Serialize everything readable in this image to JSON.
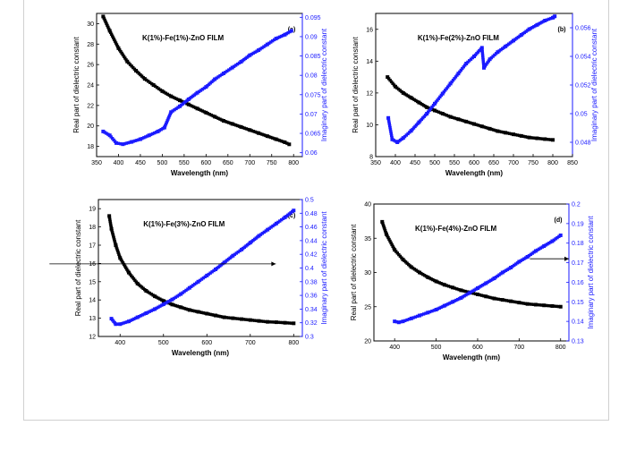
{
  "chart_data": [
    {
      "type": "scatter",
      "panel_label": "(a)",
      "title": "K(1%)-Fe(1%)-ZnO FILM",
      "xlabel": "Wavelength (nm)",
      "ylabel": "Real part of dielectric constant",
      "ylabel_right": "Imaginary part of dielectric constant",
      "xlim": [
        350,
        820
      ],
      "ylim": [
        17,
        31
      ],
      "ylim_right": [
        0.059,
        0.096
      ],
      "xticks": [
        350,
        400,
        450,
        500,
        550,
        600,
        650,
        700,
        750,
        800
      ],
      "yticks": [
        18,
        20,
        22,
        24,
        26,
        28,
        30
      ],
      "yticks_right": [
        0.06,
        0.065,
        0.07,
        0.075,
        0.08,
        0.085,
        0.09,
        0.095
      ],
      "series": [
        {
          "color": "#000000",
          "axis": "left",
          "x": [
            365,
            380,
            400,
            420,
            440,
            460,
            480,
            500,
            520,
            540,
            560,
            580,
            600,
            620,
            640,
            660,
            680,
            700,
            720,
            740,
            760,
            780,
            790
          ],
          "y": [
            30.7,
            29.3,
            27.6,
            26.3,
            25.4,
            24.6,
            24.0,
            23.4,
            22.9,
            22.5,
            22.1,
            21.7,
            21.3,
            20.9,
            20.5,
            20.2,
            19.9,
            19.6,
            19.3,
            19.0,
            18.7,
            18.4,
            18.2
          ]
        },
        {
          "color": "#1a1aff",
          "axis": "right",
          "x": [
            365,
            380,
            395,
            410,
            430,
            450,
            470,
            490,
            505,
            520,
            540,
            560,
            580,
            600,
            620,
            640,
            660,
            680,
            700,
            720,
            740,
            760,
            780,
            795
          ],
          "y": [
            0.0655,
            0.0645,
            0.0625,
            0.0622,
            0.0628,
            0.0635,
            0.0645,
            0.0655,
            0.0665,
            0.0705,
            0.072,
            0.0738,
            0.0755,
            0.077,
            0.079,
            0.0805,
            0.082,
            0.0835,
            0.0852,
            0.0865,
            0.088,
            0.0895,
            0.0905,
            0.0915
          ]
        }
      ]
    },
    {
      "type": "scatter",
      "panel_label": "(b)",
      "title": "K(1%)-Fe(2%)-ZnO FILM",
      "xlabel": "Wavelength (nm)",
      "ylabel": "Real part of dielectric constant",
      "ylabel_right": "Imaginary part of dielectric constant",
      "xlim": [
        350,
        850
      ],
      "ylim": [
        8,
        17
      ],
      "ylim_right": [
        0.047,
        0.057
      ],
      "xticks": [
        350,
        400,
        450,
        500,
        550,
        600,
        650,
        700,
        750,
        800,
        850
      ],
      "yticks": [
        8,
        10,
        12,
        14,
        16
      ],
      "yticks_right": [
        0.048,
        0.05,
        0.052,
        0.054,
        0.056
      ],
      "series": [
        {
          "color": "#000000",
          "axis": "left",
          "x": [
            380,
            400,
            420,
            440,
            460,
            480,
            500,
            520,
            540,
            560,
            580,
            600,
            620,
            640,
            660,
            680,
            700,
            720,
            740,
            760,
            780,
            800
          ],
          "y": [
            13.0,
            12.4,
            12.0,
            11.7,
            11.4,
            11.1,
            10.9,
            10.7,
            10.5,
            10.35,
            10.2,
            10.05,
            9.9,
            9.75,
            9.6,
            9.5,
            9.4,
            9.3,
            9.2,
            9.15,
            9.1,
            9.05
          ]
        },
        {
          "color": "#1a1aff",
          "axis": "right",
          "x": [
            382,
            392,
            405,
            420,
            440,
            460,
            480,
            500,
            520,
            540,
            560,
            580,
            600,
            620,
            625,
            640,
            660,
            680,
            700,
            720,
            740,
            760,
            780,
            800,
            805
          ],
          "y": [
            0.0497,
            0.0482,
            0.048,
            0.0483,
            0.0488,
            0.0494,
            0.05,
            0.0507,
            0.0514,
            0.0521,
            0.0528,
            0.0535,
            0.054,
            0.0546,
            0.0532,
            0.0538,
            0.0543,
            0.0547,
            0.0551,
            0.0555,
            0.0559,
            0.0562,
            0.0565,
            0.0567,
            0.0568
          ]
        }
      ]
    },
    {
      "type": "scatter",
      "panel_label": "(c)",
      "title": "K(1%)-Fe(3%)-ZnO FILM",
      "xlabel": "Wavelength (nm)",
      "ylabel": "Real part of dielectric constant",
      "ylabel_right": "Imaginary part of dielectric constant",
      "xlim": [
        350,
        820
      ],
      "ylim": [
        12,
        19.5
      ],
      "ylim_right": [
        0.3,
        0.5
      ],
      "xticks": [
        400,
        500,
        600,
        700,
        800
      ],
      "yticks": [
        12,
        13,
        14,
        15,
        16,
        17,
        18,
        19
      ],
      "yticks_right": [
        0.3,
        0.32,
        0.34,
        0.36,
        0.38,
        0.4,
        0.42,
        0.44,
        0.46,
        0.48,
        0.5
      ],
      "series": [
        {
          "color": "#000000",
          "axis": "left",
          "x": [
            375,
            380,
            390,
            400,
            420,
            440,
            460,
            480,
            500,
            520,
            540,
            560,
            580,
            600,
            620,
            640,
            660,
            680,
            700,
            720,
            740,
            760,
            780,
            800
          ],
          "y": [
            18.6,
            17.9,
            17.0,
            16.3,
            15.5,
            14.9,
            14.5,
            14.2,
            13.95,
            13.75,
            13.6,
            13.45,
            13.35,
            13.25,
            13.15,
            13.05,
            13.0,
            12.95,
            12.9,
            12.85,
            12.8,
            12.78,
            12.75,
            12.72
          ]
        },
        {
          "color": "#1a1aff",
          "axis": "right",
          "x": [
            380,
            390,
            400,
            420,
            440,
            460,
            480,
            500,
            520,
            540,
            560,
            580,
            600,
            620,
            640,
            660,
            680,
            700,
            720,
            740,
            760,
            780,
            800
          ],
          "y": [
            0.326,
            0.318,
            0.318,
            0.322,
            0.328,
            0.334,
            0.34,
            0.347,
            0.354,
            0.362,
            0.371,
            0.38,
            0.389,
            0.398,
            0.408,
            0.418,
            0.427,
            0.437,
            0.447,
            0.456,
            0.465,
            0.474,
            0.484
          ]
        }
      ]
    },
    {
      "type": "scatter",
      "panel_label": "(d)",
      "title": "K(1%)-Fe(4%)-ZnO FILM",
      "xlabel": "Wavelength (nm)",
      "ylabel": "Real part of dielectric constant",
      "ylabel_right": "Imaginary part of dielectric constant",
      "xlim": [
        350,
        820
      ],
      "ylim": [
        20,
        40
      ],
      "ylim_right": [
        0.13,
        0.2
      ],
      "xticks": [
        400,
        500,
        600,
        700,
        800
      ],
      "yticks": [
        20,
        25,
        30,
        35,
        40
      ],
      "yticks_right": [
        0.13,
        0.14,
        0.15,
        0.16,
        0.17,
        0.18,
        0.19,
        0.2
      ],
      "series": [
        {
          "color": "#000000",
          "axis": "left",
          "x": [
            370,
            380,
            400,
            420,
            440,
            460,
            480,
            500,
            520,
            540,
            560,
            580,
            600,
            620,
            640,
            660,
            680,
            700,
            720,
            740,
            760,
            780,
            800
          ],
          "y": [
            37.4,
            35.6,
            33.3,
            31.9,
            30.8,
            30.0,
            29.3,
            28.7,
            28.2,
            27.8,
            27.4,
            27.1,
            26.8,
            26.5,
            26.2,
            26.0,
            25.8,
            25.6,
            25.4,
            25.3,
            25.2,
            25.1,
            25.0
          ]
        },
        {
          "color": "#1a1aff",
          "axis": "right",
          "x": [
            400,
            410,
            420,
            440,
            460,
            480,
            500,
            520,
            540,
            560,
            580,
            600,
            620,
            640,
            660,
            680,
            700,
            720,
            740,
            760,
            780,
            800
          ],
          "y": [
            0.14,
            0.1395,
            0.14,
            0.1415,
            0.143,
            0.1445,
            0.146,
            0.148,
            0.15,
            0.152,
            0.1545,
            0.157,
            0.1595,
            0.162,
            0.165,
            0.1675,
            0.1705,
            0.173,
            0.176,
            0.1785,
            0.181,
            0.184
          ]
        }
      ]
    }
  ]
}
